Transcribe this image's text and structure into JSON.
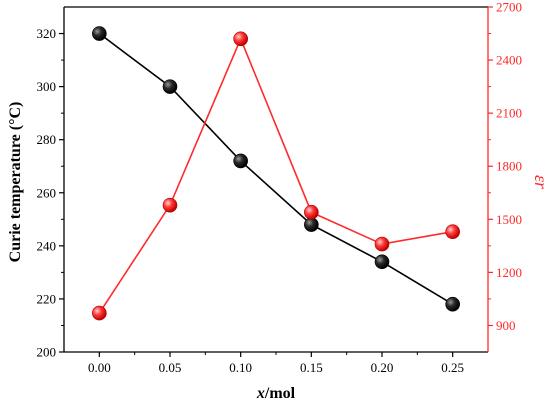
{
  "chart_data": {
    "type": "line",
    "x": [
      0.0,
      0.05,
      0.1,
      0.15,
      0.2,
      0.25
    ],
    "x_tick_labels": [
      "0.00",
      "0.05",
      "0.10",
      "0.15",
      "0.20",
      "0.25"
    ],
    "xlabel_italic": "x",
    "xlabel_rest": "/mol",
    "xlim": [
      -0.025,
      0.275
    ],
    "ylabel": "Curie temperature (°C)",
    "ylim": [
      200,
      330
    ],
    "y_ticks": [
      200,
      220,
      240,
      260,
      280,
      300,
      320
    ],
    "y2label": "εr",
    "y2lim": [
      750,
      2700
    ],
    "y2_ticks": [
      900,
      1200,
      1500,
      1800,
      2100,
      2400,
      2700
    ],
    "grid": false,
    "series": [
      {
        "axis": "left",
        "color": "#000000",
        "marker_color": "#1a1a1a",
        "values": [
          320,
          300,
          272,
          248,
          234,
          218
        ]
      },
      {
        "axis": "right",
        "color": "#ff2a2a",
        "marker_color": "#ff3030",
        "values": [
          970,
          1580,
          2520,
          1540,
          1360,
          1430
        ]
      }
    ]
  }
}
